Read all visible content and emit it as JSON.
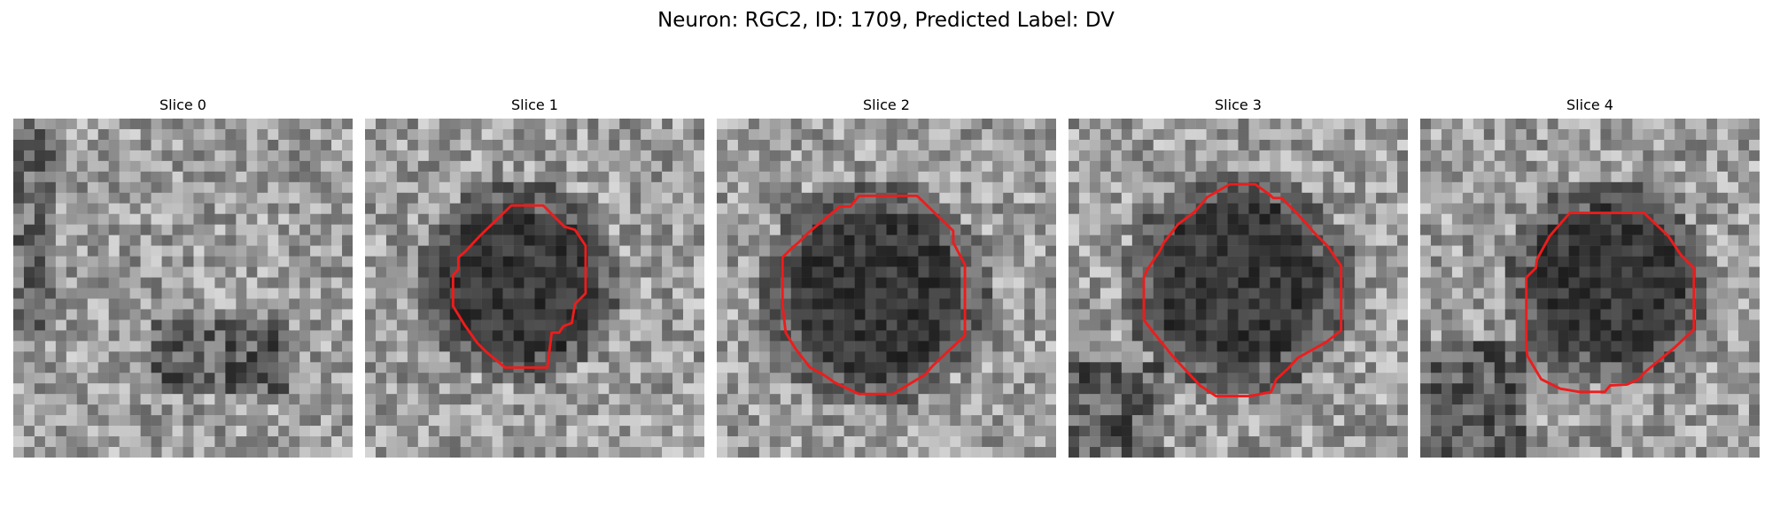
{
  "figure": {
    "title": "Neuron: RGC2, ID: 1709, Predicted Label: DV"
  },
  "panels": [
    {
      "label": "Slice 0",
      "has_contour": false
    },
    {
      "label": "Slice 1",
      "has_contour": true
    },
    {
      "label": "Slice 2",
      "has_contour": true
    },
    {
      "label": "Slice 3",
      "has_contour": true
    },
    {
      "label": "Slice 4",
      "has_contour": true
    }
  ],
  "colors": {
    "contour": "#ee1c1c",
    "background": "#ffffff"
  }
}
